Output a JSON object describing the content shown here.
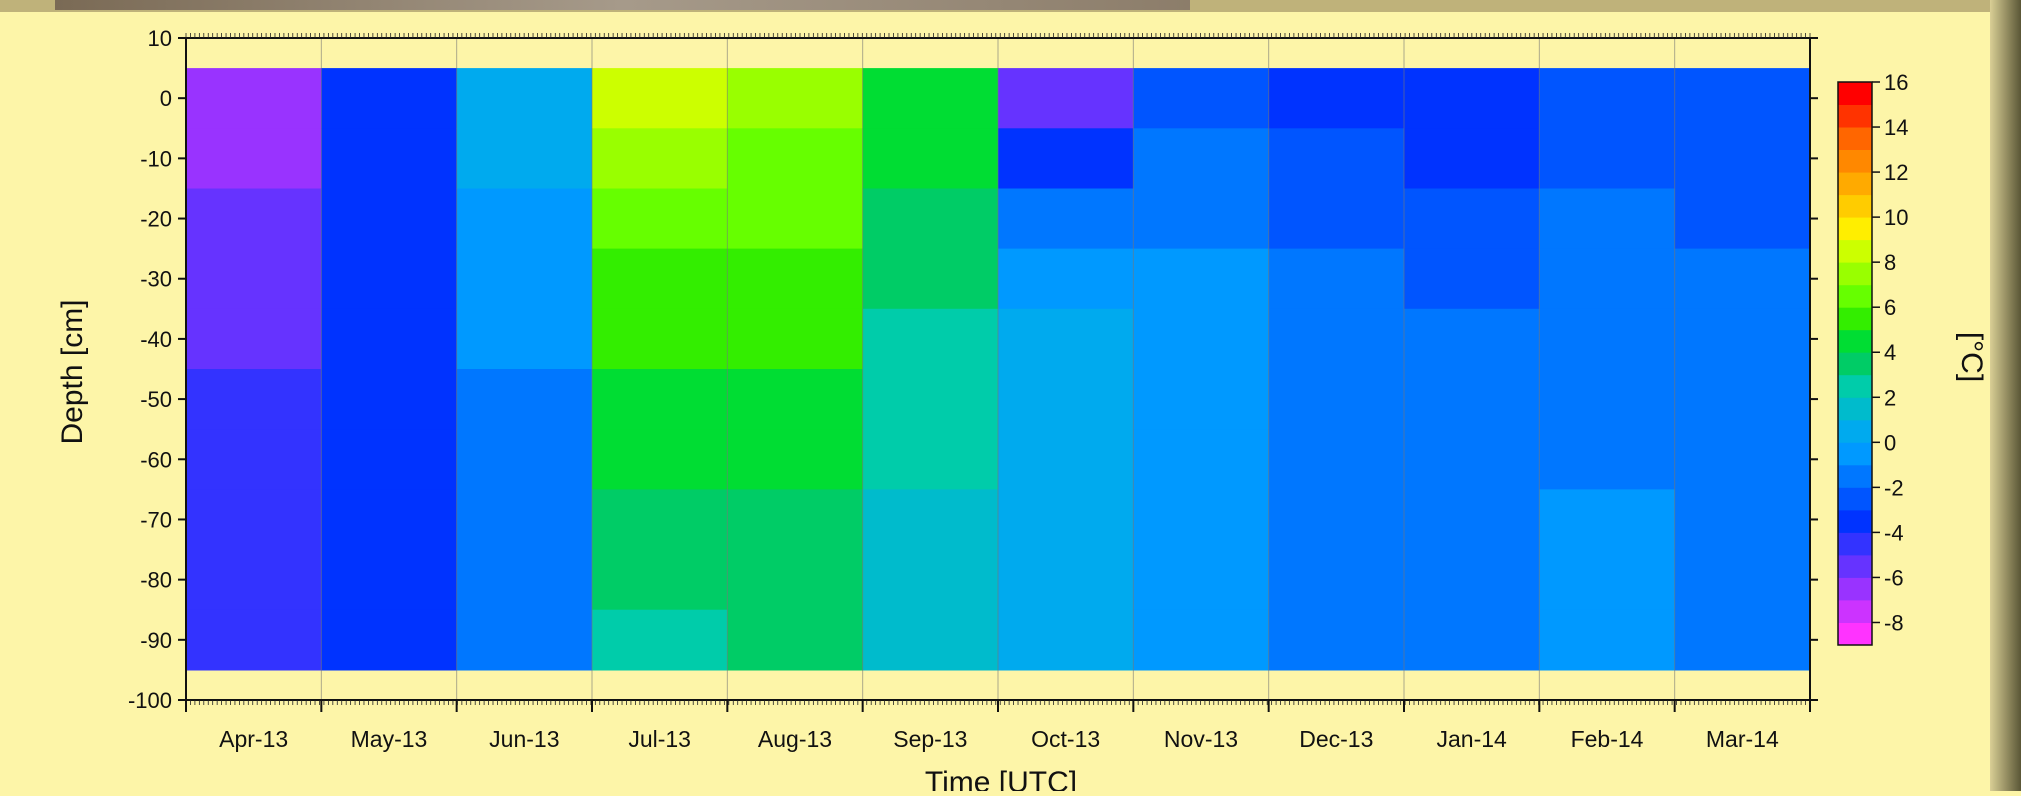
{
  "chart_data": {
    "type": "heatmap",
    "title": "",
    "xlabel": "Time [UTC]",
    "ylabel": "Depth [cm]",
    "x_tick_labels": [
      "Apr-13",
      "May-13",
      "Jun-13",
      "Jul-13",
      "Aug-13",
      "Sep-13",
      "Oct-13",
      "Nov-13",
      "Dec-13",
      "Jan-14",
      "Feb-14",
      "Mar-14"
    ],
    "y_ticks": [
      10,
      0,
      -10,
      -20,
      -30,
      -40,
      -50,
      -60,
      -70,
      -80,
      -90,
      -100
    ],
    "ylim": [
      -100,
      10
    ],
    "data_depth_range": [
      -95,
      5
    ],
    "grid": true,
    "colorbar": {
      "label": "[°C]",
      "ticks": [
        16,
        14,
        12,
        10,
        8,
        6,
        4,
        2,
        0,
        -2,
        -4,
        -6,
        -8
      ],
      "range": [
        -9,
        16
      ],
      "colors": [
        "#ff33ff",
        "#cc33ff",
        "#9933ff",
        "#6633ff",
        "#3333ff",
        "#0033ff",
        "#0055ff",
        "#0077ff",
        "#0099ff",
        "#00aaee",
        "#00bbcc",
        "#00ccaa",
        "#00cc66",
        "#00dd33",
        "#33ee00",
        "#66ff00",
        "#99ff00",
        "#ccff00",
        "#ffee00",
        "#ffcc00",
        "#ffaa00",
        "#ff8800",
        "#ff6600",
        "#ff3300",
        "#ff0000"
      ]
    },
    "temperature_columns": [
      {
        "month": "Apr-13",
        "profile_degC": [
          -7,
          -7,
          -6,
          -6,
          -6,
          -5,
          -5,
          -5,
          -5,
          -5
        ]
      },
      {
        "month": "May-13",
        "profile_degC": [
          -4,
          -4,
          -4,
          -4,
          -4,
          -4,
          -4,
          -4,
          -4,
          -4
        ]
      },
      {
        "month": "Jun-13",
        "profile_degC": [
          0,
          0,
          -1,
          -1,
          -1,
          -2,
          -2,
          -2,
          -2,
          -2
        ]
      },
      {
        "month": "Jul-13",
        "profile_degC": [
          8,
          7,
          6,
          5,
          5,
          4,
          4,
          3,
          3,
          2
        ]
      },
      {
        "month": "Aug-13",
        "profile_degC": [
          7,
          6,
          6,
          5,
          5,
          4,
          4,
          3,
          3,
          3
        ]
      },
      {
        "month": "Sep-13",
        "profile_degC": [
          4,
          4,
          3,
          3,
          2,
          2,
          2,
          1,
          1,
          1
        ]
      },
      {
        "month": "Oct-13",
        "profile_degC": [
          -6,
          -4,
          -2,
          -1,
          0,
          0,
          0,
          0,
          0,
          0
        ]
      },
      {
        "month": "Nov-13",
        "profile_degC": [
          -3,
          -2,
          -2,
          -1,
          -1,
          -1,
          -1,
          -1,
          -1,
          -1
        ]
      },
      {
        "month": "Dec-13",
        "profile_degC": [
          -4,
          -3,
          -3,
          -2,
          -2,
          -2,
          -2,
          -2,
          -2,
          -2
        ]
      },
      {
        "month": "Jan-14",
        "profile_degC": [
          -4,
          -4,
          -3,
          -3,
          -2,
          -2,
          -2,
          -2,
          -2,
          -2
        ]
      },
      {
        "month": "Feb-14",
        "profile_degC": [
          -3,
          -3,
          -2,
          -2,
          -2,
          -2,
          -2,
          -1,
          -1,
          -1
        ]
      },
      {
        "month": "Mar-14",
        "profile_degC": [
          -3,
          -3,
          -3,
          -2,
          -2,
          -2,
          -2,
          -2,
          -2,
          -2
        ]
      }
    ]
  }
}
